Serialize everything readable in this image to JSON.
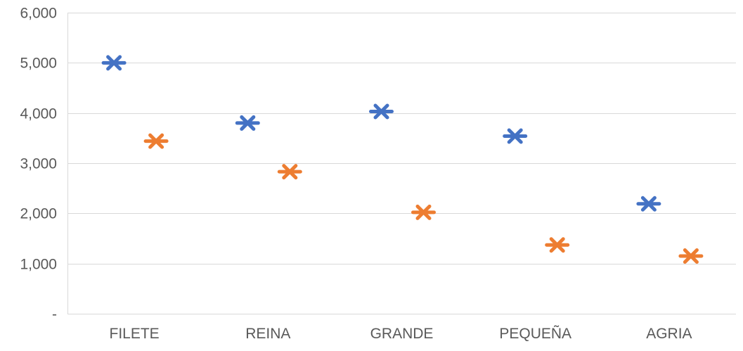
{
  "chart_data": {
    "type": "scatter",
    "title": "",
    "xlabel": "",
    "ylabel": "",
    "categories": [
      "FILETE",
      "REINA",
      "GRANDE",
      "PEQUEÑA",
      "AGRIA"
    ],
    "series": [
      {
        "color": "#4472C4",
        "values": [
          5000,
          3800,
          4030,
          3540,
          2190
        ]
      },
      {
        "color": "#ED7D31",
        "values": [
          3440,
          2830,
          2020,
          1370,
          1150
        ]
      }
    ],
    "ylim": [
      0,
      6000
    ],
    "yticks": [
      0,
      1000,
      2000,
      3000,
      4000,
      5000,
      6000
    ],
    "ytick_labels": [
      "-",
      "1,000",
      "2,000",
      "3,000",
      "4,000",
      "5,000",
      "6,000"
    ],
    "grid": true,
    "marker": "asterisk",
    "legend": "none"
  }
}
